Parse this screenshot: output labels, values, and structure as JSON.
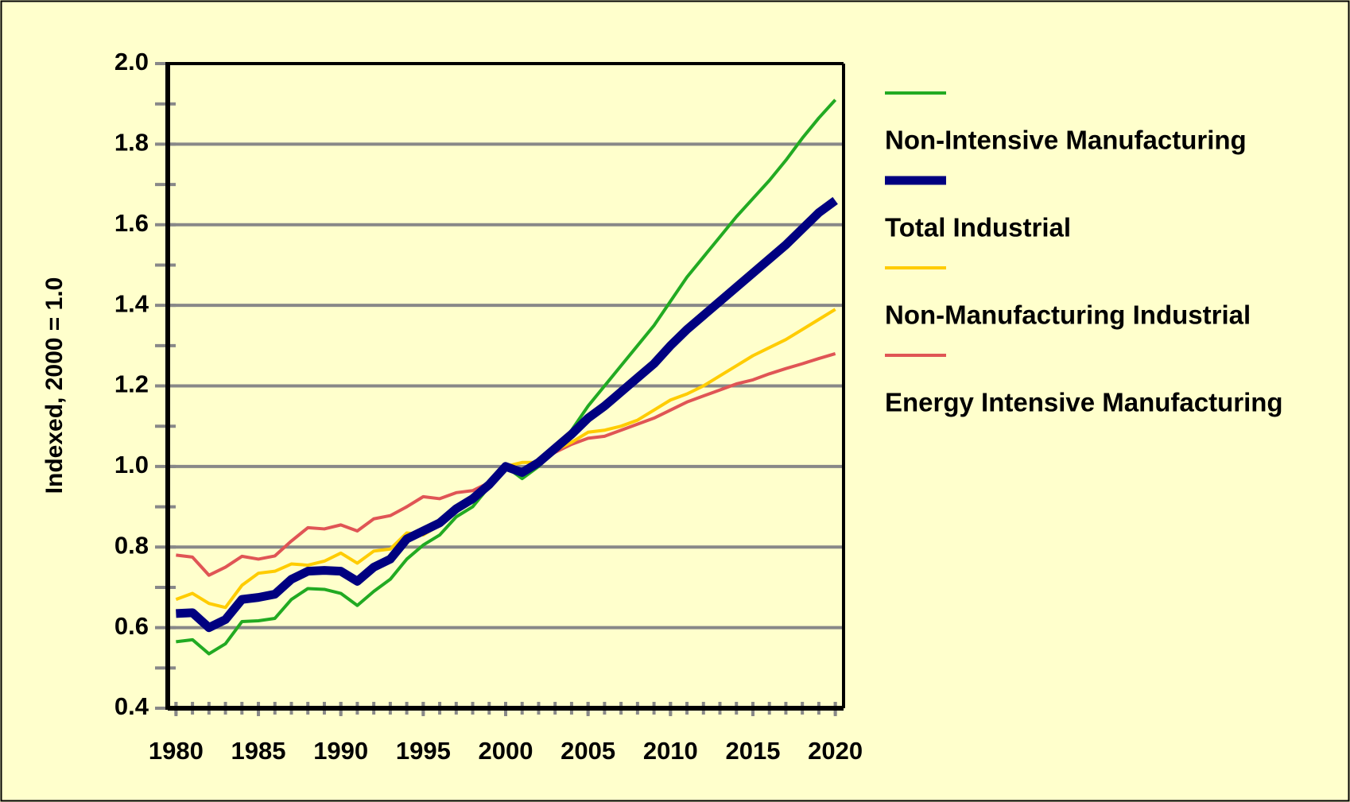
{
  "chart_data": {
    "type": "line",
    "y_label": "Indexed, 2000 = 1.0",
    "x": [
      1980,
      1981,
      1982,
      1983,
      1984,
      1985,
      1986,
      1987,
      1988,
      1989,
      1990,
      1991,
      1992,
      1993,
      1994,
      1995,
      1996,
      1997,
      1998,
      1999,
      2000,
      2001,
      2002,
      2003,
      2004,
      2005,
      2006,
      2007,
      2008,
      2009,
      2010,
      2011,
      2012,
      2013,
      2014,
      2015,
      2016,
      2017,
      2018,
      2019,
      2020
    ],
    "xlim": [
      1979.5,
      2020.5
    ],
    "xticks": [
      1980,
      1985,
      1990,
      1995,
      2000,
      2005,
      2010,
      2015,
      2020
    ],
    "ylim": [
      0.4,
      2.0
    ],
    "yticks": [
      0.4,
      0.6,
      0.8,
      {
        "value": 1.0,
        "label": "1.0"
      },
      1.2,
      1.4,
      1.6,
      1.8,
      {
        "value": 2.0,
        "label": "2.0"
      }
    ],
    "yminorticks": [
      0.5,
      0.7,
      0.9,
      1.1,
      1.3,
      1.5,
      1.7,
      1.9
    ],
    "grid": true,
    "legend": "right",
    "series": [
      {
        "name": "Non-Intensive Manufacturing",
        "color": "#22aa22",
        "linewidth": 4,
        "values": [
          0.565,
          0.57,
          0.535,
          0.56,
          0.615,
          0.617,
          0.623,
          0.67,
          0.697,
          0.695,
          0.685,
          0.655,
          0.69,
          0.72,
          0.77,
          0.805,
          0.83,
          0.875,
          0.9,
          0.95,
          1.0,
          0.97,
          1.0,
          1.04,
          1.09,
          1.15,
          1.2,
          1.25,
          1.3,
          1.35,
          1.41,
          1.47,
          1.52,
          1.57,
          1.62,
          1.665,
          1.71,
          1.76,
          1.815,
          1.865,
          1.91
        ]
      },
      {
        "name": "Total Industrial",
        "color": "#000080",
        "linewidth": 11,
        "values": [
          0.635,
          0.637,
          0.6,
          0.62,
          0.67,
          0.675,
          0.683,
          0.72,
          0.74,
          0.742,
          0.74,
          0.715,
          0.75,
          0.77,
          0.82,
          0.84,
          0.86,
          0.895,
          0.92,
          0.955,
          1.0,
          0.985,
          1.01,
          1.045,
          1.08,
          1.12,
          1.15,
          1.185,
          1.22,
          1.255,
          1.3,
          1.34,
          1.375,
          1.41,
          1.445,
          1.48,
          1.515,
          1.55,
          1.59,
          1.63,
          1.66
        ]
      },
      {
        "name": "Non-Manufacturing Industrial",
        "color": "#ffcc00",
        "linewidth": 4,
        "values": [
          0.67,
          0.685,
          0.66,
          0.65,
          0.705,
          0.735,
          0.74,
          0.758,
          0.755,
          0.765,
          0.785,
          0.76,
          0.79,
          0.795,
          0.835,
          0.83,
          0.855,
          0.895,
          0.925,
          0.955,
          1.0,
          1.01,
          1.01,
          1.04,
          1.06,
          1.085,
          1.09,
          1.1,
          1.115,
          1.14,
          1.165,
          1.18,
          1.2,
          1.225,
          1.25,
          1.275,
          1.295,
          1.315,
          1.34,
          1.365,
          1.39
        ]
      },
      {
        "name": "Energy Intensive Manufacturing",
        "color": "#e05555",
        "linewidth": 4,
        "values": [
          0.78,
          0.775,
          0.73,
          0.75,
          0.777,
          0.77,
          0.778,
          0.815,
          0.848,
          0.845,
          0.855,
          0.84,
          0.87,
          0.878,
          0.9,
          0.925,
          0.92,
          0.935,
          0.94,
          0.96,
          1.0,
          0.99,
          1.01,
          1.035,
          1.055,
          1.07,
          1.075,
          1.09,
          1.105,
          1.12,
          1.14,
          1.16,
          1.175,
          1.19,
          1.205,
          1.215,
          1.23,
          1.243,
          1.255,
          1.268,
          1.28
        ]
      }
    ]
  }
}
